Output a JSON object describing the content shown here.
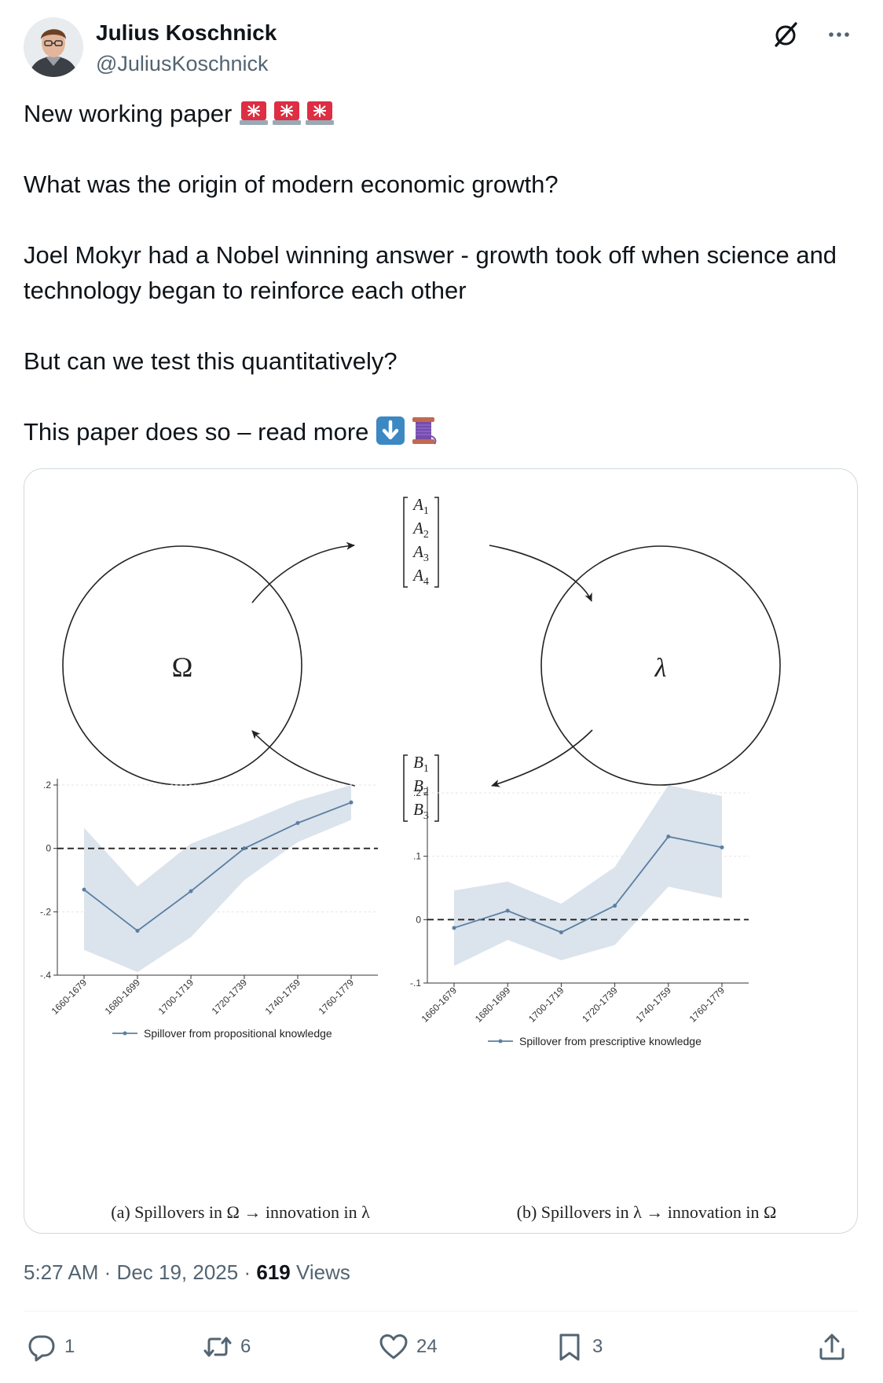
{
  "author": {
    "name": "Julius Koschnick",
    "handle": "@JuliusKoschnick"
  },
  "icons": {
    "grok": "grok-icon",
    "more": "more-icon",
    "siren": "rotating-light-icon",
    "down_arrow": "down-arrow-icon",
    "thread": "spool-of-thread-icon",
    "reply": "reply-icon",
    "repost": "repost-icon",
    "like": "like-icon",
    "bookmark": "bookmark-icon",
    "share": "share-icon"
  },
  "tweet": {
    "line1": "New working paper",
    "line2": "What was the origin of modern economic growth?",
    "line3": "Joel Mokyr had a Nobel winning answer - growth took off when science and technology began to reinforce each other",
    "line4": "But can we test this quantitatively?",
    "line5": "This paper does so – read more"
  },
  "figure": {
    "omega": "Ω",
    "lambda": "λ",
    "a_vector": [
      "A1",
      "A2",
      "A3",
      "A4"
    ],
    "b_vector": [
      "B1",
      "B2",
      "B3"
    ],
    "caption_a": "(a) Spillovers in Ω → innovation in λ",
    "caption_b": "(b) Spillovers in λ → innovation in Ω"
  },
  "chart_data": [
    {
      "type": "line",
      "categories": [
        "1660-1679",
        "1680-1699",
        "1700-1719",
        "1720-1739",
        "1740-1759",
        "1760-1779"
      ],
      "series": [
        {
          "name": "Spillover from propositional knowledge",
          "values": [
            -0.13,
            -0.26,
            -0.135,
            0.0,
            0.08,
            0.145
          ],
          "ci_lower": [
            -0.32,
            -0.39,
            -0.28,
            -0.1,
            0.02,
            0.09
          ],
          "ci_upper": [
            0.065,
            -0.12,
            0.015,
            0.08,
            0.15,
            0.2
          ]
        }
      ],
      "yticks": [
        ".2",
        "0",
        "-.2",
        "-.4"
      ],
      "ylim": [
        -0.4,
        0.2
      ],
      "reference_line": 0,
      "color": "#5b7fa3",
      "band_color": "#dbe3ec",
      "legend": "bottom"
    },
    {
      "type": "line",
      "categories": [
        "1660-1679",
        "1680-1699",
        "1700-1719",
        "1720-1739",
        "1740-1759",
        "1760-1779"
      ],
      "series": [
        {
          "name": "Spillover from prescriptive knowledge",
          "values": [
            -0.013,
            0.014,
            -0.02,
            0.022,
            0.131,
            0.114
          ],
          "ci_lower": [
            -0.073,
            -0.032,
            -0.064,
            -0.04,
            0.052,
            0.034
          ],
          "ci_upper": [
            0.046,
            0.06,
            0.025,
            0.083,
            0.212,
            0.195
          ]
        }
      ],
      "yticks": [
        ".2",
        ".1",
        "0",
        "-.1"
      ],
      "ylim": [
        -0.1,
        0.2
      ],
      "reference_line": 0,
      "color": "#5b7fa3",
      "band_color": "#dbe3ec",
      "legend": "bottom"
    }
  ],
  "meta": {
    "time": "5:27 AM",
    "sep1": "·",
    "date": "Dec 19, 2025",
    "sep2": "·",
    "views_count": "619",
    "views_label": "Views"
  },
  "actions": {
    "replies": "1",
    "reposts": "6",
    "likes": "24",
    "bookmarks": "3"
  }
}
